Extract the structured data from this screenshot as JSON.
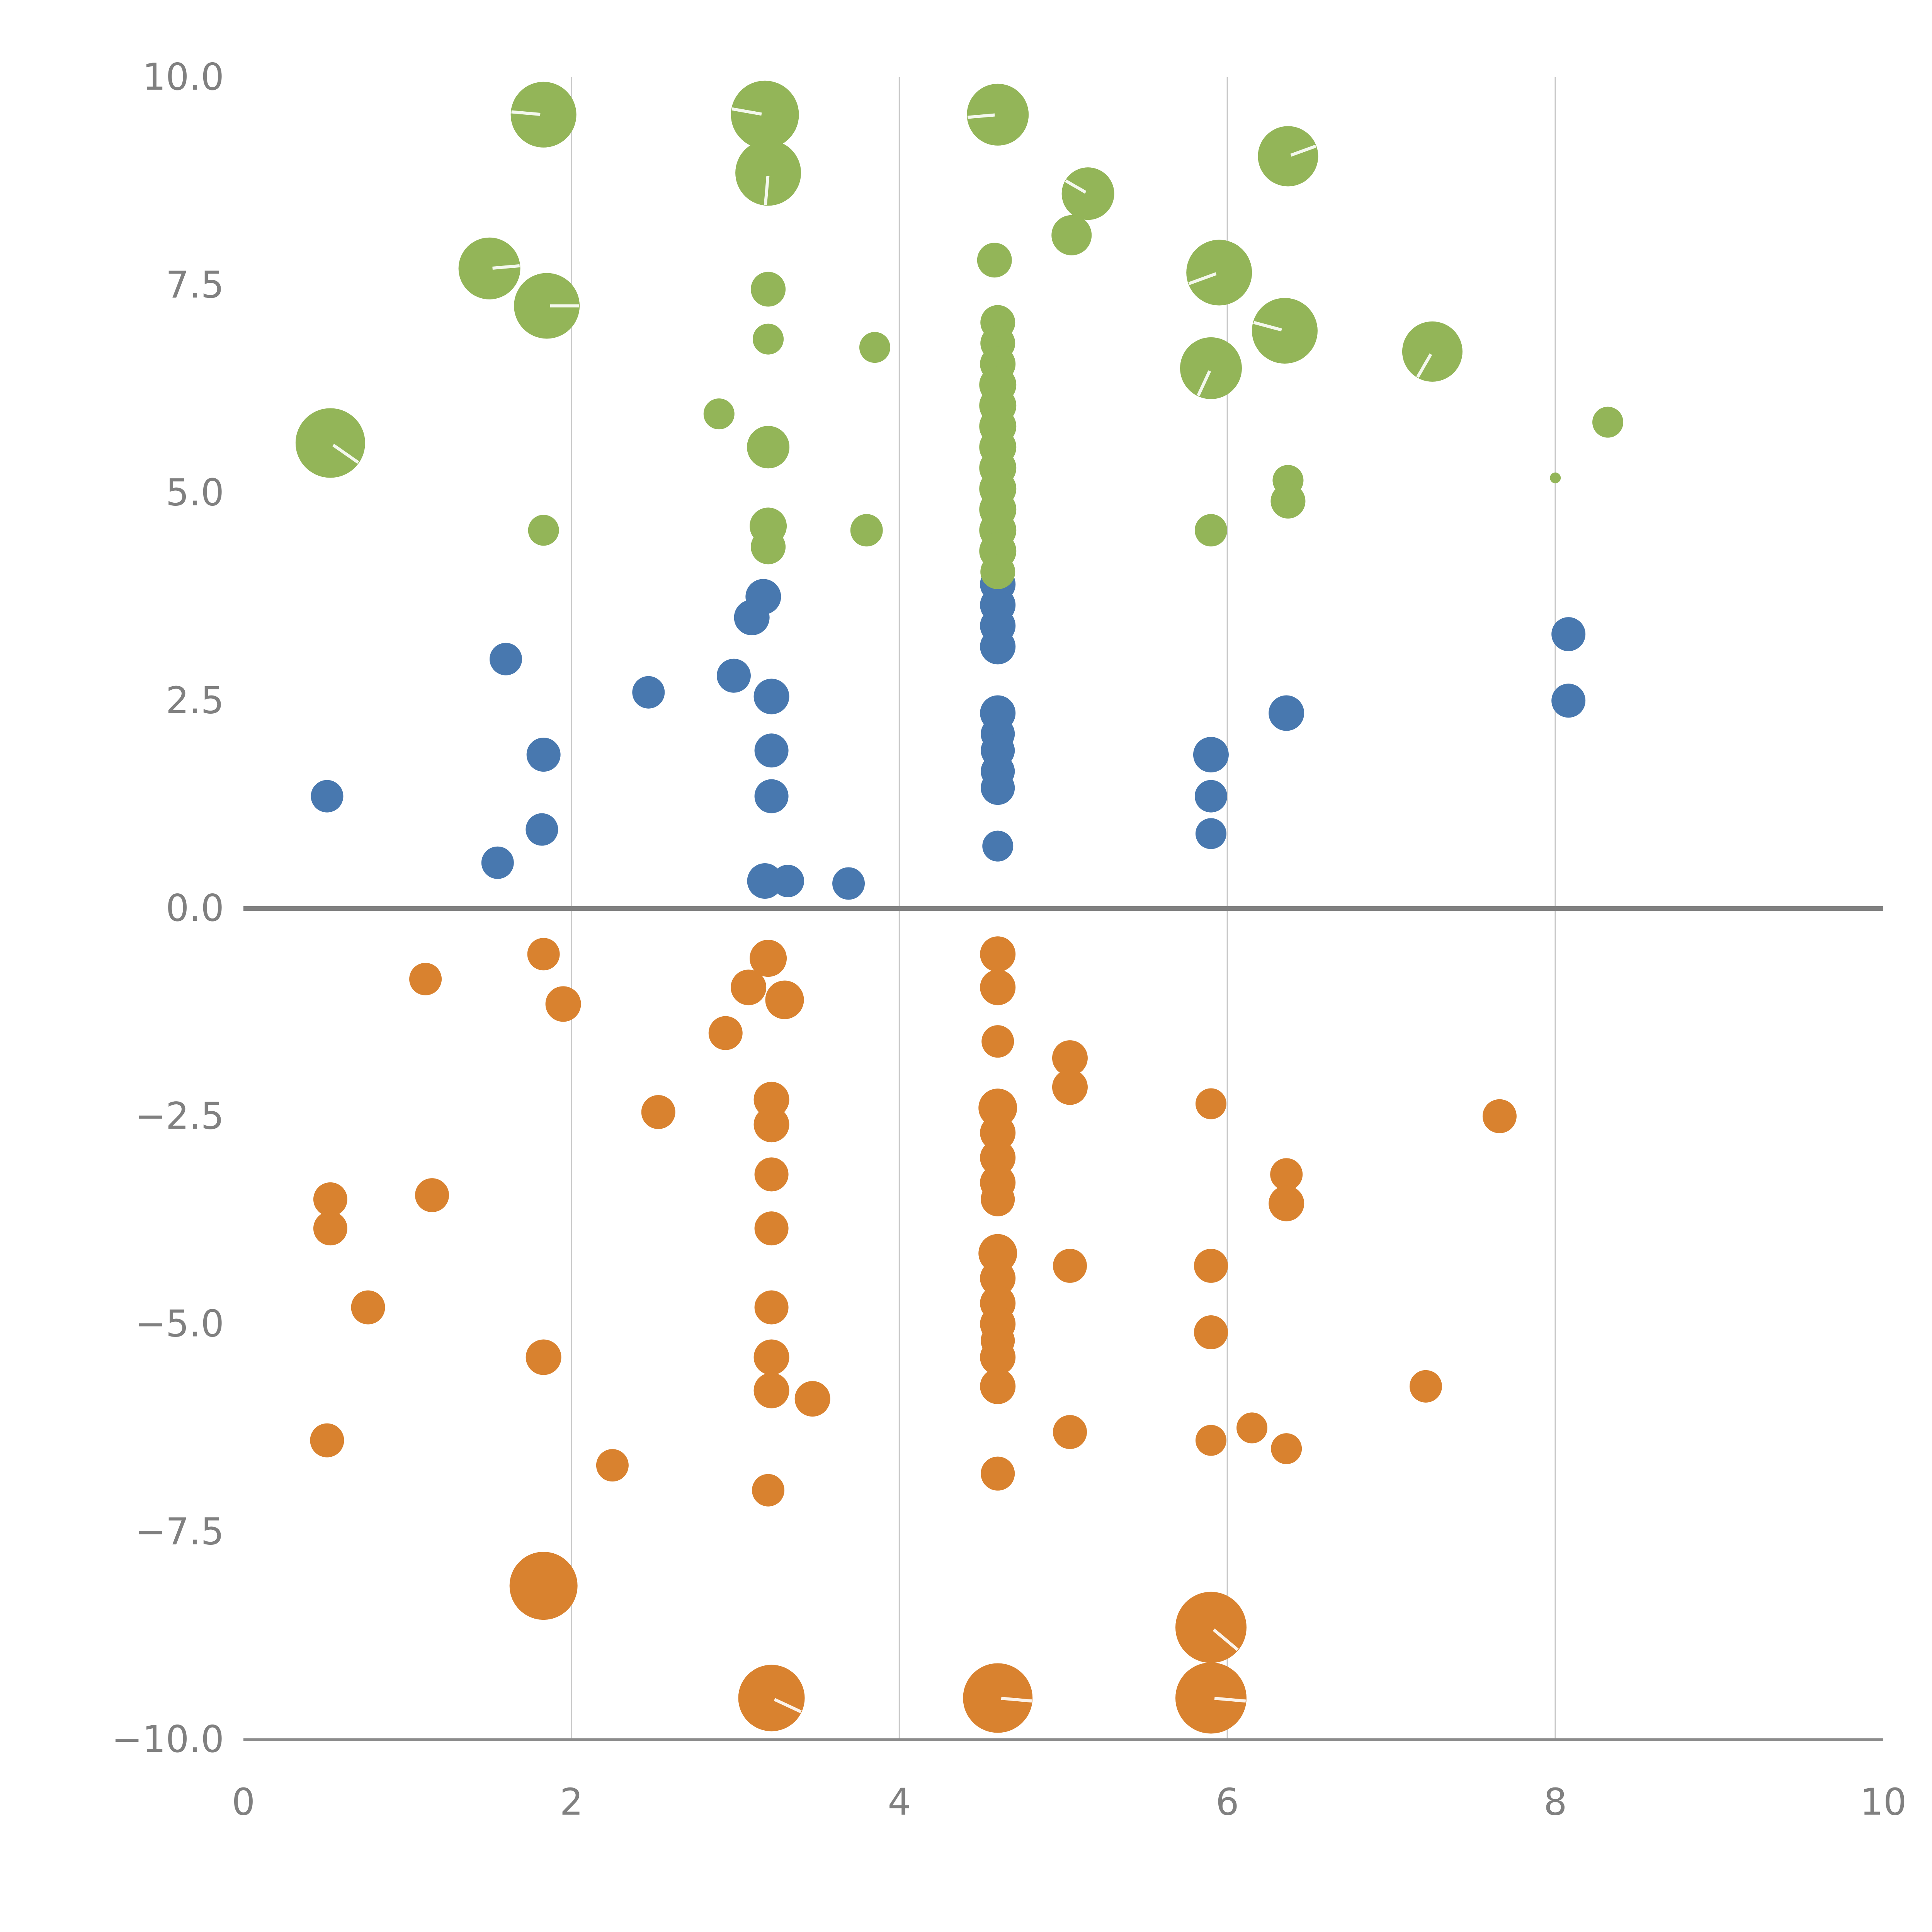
{
  "chart_data": {
    "type": "scatter",
    "title": "",
    "xlabel": "",
    "ylabel": "",
    "xlim": [
      0,
      10
    ],
    "ylim": [
      -10,
      10
    ],
    "grid": "vertical-gridlines-at-x-2-4-6-8, emphasized zero line",
    "legend": "none",
    "colors": {
      "background": "#ffffff",
      "grid": "#c8c8c8",
      "axis": "#8c8c8c",
      "zero_line": "#808080",
      "tick_text": "#808080",
      "bubble_tick": "#ffffff"
    },
    "axes": {
      "x": {
        "min": 0,
        "max": 10,
        "ticks": [
          0,
          2,
          4,
          6,
          8,
          10
        ],
        "tick_labels": [
          "0",
          "2",
          "4",
          "6",
          "8",
          "10"
        ],
        "gridlines": [
          2,
          4,
          6,
          8
        ]
      },
      "y": {
        "min": -10,
        "max": 10,
        "ticks": [
          10,
          7.5,
          5,
          2.5,
          0,
          -2.5,
          -5,
          -7.5,
          -10
        ],
        "tick_labels": [
          "10.0",
          "7.5",
          "5.0",
          "2.5",
          "0.0",
          "−2.5",
          "−5.0",
          "−7.5",
          "−10.0"
        ],
        "zero_line": true
      }
    },
    "series": [
      {
        "name": "blue",
        "color": "#4878af",
        "points": [
          [
            0.51,
            1.35,
            42
          ],
          [
            1.6,
            3.0,
            42
          ],
          [
            1.55,
            0.55,
            42
          ],
          [
            1.83,
            1.85,
            44
          ],
          [
            1.82,
            0.95,
            42
          ],
          [
            2.47,
            2.6,
            42
          ],
          [
            2.99,
            2.8,
            44
          ],
          [
            3.1,
            3.5,
            46
          ],
          [
            3.17,
            3.75,
            46
          ],
          [
            3.22,
            2.55,
            46
          ],
          [
            3.22,
            1.9,
            44
          ],
          [
            3.22,
            1.35,
            44
          ],
          [
            3.18,
            0.33,
            46
          ],
          [
            3.32,
            0.33,
            42
          ],
          [
            3.69,
            0.3,
            42
          ],
          [
            4.6,
            3.9,
            46
          ],
          [
            4.6,
            3.65,
            46
          ],
          [
            4.6,
            3.4,
            46
          ],
          [
            4.6,
            3.15,
            46
          ],
          [
            4.6,
            2.35,
            46
          ],
          [
            4.6,
            2.1,
            44
          ],
          [
            4.6,
            1.9,
            44
          ],
          [
            4.6,
            1.65,
            44
          ],
          [
            4.6,
            1.45,
            44
          ],
          [
            4.6,
            0.75,
            40
          ],
          [
            5.9,
            1.85,
            46
          ],
          [
            5.9,
            1.35,
            42
          ],
          [
            5.9,
            0.9,
            40
          ],
          [
            6.36,
            2.35,
            46
          ],
          [
            8.08,
            3.3,
            44
          ],
          [
            8.08,
            2.5,
            44
          ]
        ]
      },
      {
        "name": "green",
        "color": "#93b558",
        "points": [
          [
            1.83,
            9.55,
            85,
            175
          ],
          [
            3.18,
            9.55,
            88,
            170
          ],
          [
            3.2,
            8.85,
            85,
            265
          ],
          [
            4.6,
            9.55,
            80,
            185
          ],
          [
            5.15,
            8.6,
            68,
            150
          ],
          [
            5.05,
            8.1,
            52
          ],
          [
            6.37,
            9.05,
            78,
            20
          ],
          [
            1.5,
            7.7,
            80,
            5
          ],
          [
            1.85,
            7.25,
            85,
            0
          ],
          [
            5.95,
            7.65,
            85,
            200
          ],
          [
            6.35,
            6.95,
            85,
            165
          ],
          [
            7.25,
            6.7,
            78,
            240
          ],
          [
            5.9,
            6.5,
            80,
            245
          ],
          [
            0.53,
            5.6,
            90,
            325
          ],
          [
            3.2,
            7.45,
            45
          ],
          [
            3.2,
            6.85,
            40
          ],
          [
            3.85,
            6.75,
            40
          ],
          [
            2.9,
            5.95,
            40
          ],
          [
            3.2,
            5.55,
            55
          ],
          [
            8.32,
            5.85,
            40
          ],
          [
            6.37,
            5.15,
            40
          ],
          [
            6.37,
            4.9,
            45
          ],
          [
            8.0,
            5.18,
            14
          ],
          [
            1.83,
            4.55,
            40
          ],
          [
            3.2,
            4.6,
            48
          ],
          [
            3.2,
            4.35,
            45
          ],
          [
            3.8,
            4.55,
            42
          ],
          [
            5.9,
            4.55,
            42
          ],
          [
            4.58,
            7.8,
            45
          ],
          [
            4.6,
            7.05,
            45
          ],
          [
            4.6,
            6.8,
            45
          ],
          [
            4.6,
            6.55,
            46
          ],
          [
            4.6,
            6.3,
            48
          ],
          [
            4.6,
            6.05,
            48
          ],
          [
            4.6,
            5.8,
            48
          ],
          [
            4.6,
            5.55,
            48
          ],
          [
            4.6,
            5.3,
            48
          ],
          [
            4.6,
            5.05,
            48
          ],
          [
            4.6,
            4.8,
            48
          ],
          [
            4.6,
            4.55,
            48
          ],
          [
            4.6,
            4.3,
            48
          ],
          [
            4.6,
            4.05,
            45
          ]
        ]
      },
      {
        "name": "orange",
        "color": "#d9822f",
        "points": [
          [
            1.11,
            -0.85,
            42
          ],
          [
            1.83,
            -0.55,
            42
          ],
          [
            1.95,
            -1.15,
            46
          ],
          [
            3.2,
            -0.6,
            48
          ],
          [
            3.08,
            -0.95,
            46
          ],
          [
            3.3,
            -1.1,
            50
          ],
          [
            2.94,
            -1.5,
            44
          ],
          [
            4.6,
            -0.55,
            46
          ],
          [
            4.6,
            -0.95,
            46
          ],
          [
            4.6,
            -1.6,
            42
          ],
          [
            5.04,
            -1.8,
            46
          ],
          [
            5.04,
            -2.15,
            46
          ],
          [
            2.53,
            -2.45,
            44
          ],
          [
            3.22,
            -2.3,
            46
          ],
          [
            3.22,
            -2.6,
            46
          ],
          [
            3.22,
            -3.2,
            44
          ],
          [
            4.6,
            -2.4,
            50
          ],
          [
            4.6,
            -2.7,
            46
          ],
          [
            4.6,
            -3.0,
            46
          ],
          [
            4.6,
            -3.3,
            46
          ],
          [
            4.6,
            -3.5,
            44
          ],
          [
            5.9,
            -2.35,
            40
          ],
          [
            7.66,
            -2.5,
            44
          ],
          [
            0.53,
            -3.5,
            44
          ],
          [
            0.53,
            -3.85,
            44
          ],
          [
            1.15,
            -3.45,
            44
          ],
          [
            6.36,
            -3.2,
            42
          ],
          [
            6.36,
            -3.55,
            46
          ],
          [
            3.22,
            -3.85,
            44
          ],
          [
            4.6,
            -4.15,
            50
          ],
          [
            4.6,
            -4.45,
            46
          ],
          [
            4.6,
            -4.75,
            46
          ],
          [
            4.6,
            -5.0,
            46
          ],
          [
            4.6,
            -5.2,
            44
          ],
          [
            5.04,
            -4.3,
            44
          ],
          [
            5.9,
            -4.3,
            44
          ],
          [
            0.76,
            -4.8,
            44
          ],
          [
            3.22,
            -4.8,
            44
          ],
          [
            5.9,
            -5.1,
            44
          ],
          [
            1.83,
            -5.4,
            46
          ],
          [
            3.22,
            -5.4,
            46
          ],
          [
            3.22,
            -5.8,
            46
          ],
          [
            3.47,
            -5.9,
            46
          ],
          [
            4.6,
            -5.4,
            46
          ],
          [
            4.6,
            -5.75,
            46
          ],
          [
            7.21,
            -5.75,
            42
          ],
          [
            0.51,
            -6.4,
            44
          ],
          [
            5.04,
            -6.3,
            44
          ],
          [
            5.9,
            -6.4,
            40
          ],
          [
            6.15,
            -6.25,
            40
          ],
          [
            6.36,
            -6.5,
            40
          ],
          [
            2.25,
            -6.7,
            42
          ],
          [
            4.6,
            -6.8,
            44
          ],
          [
            3.2,
            -7.0,
            42
          ],
          [
            1.83,
            -8.15,
            88
          ],
          [
            5.9,
            -8.65,
            92,
            320
          ],
          [
            3.22,
            -9.5,
            86,
            335
          ],
          [
            4.6,
            -9.5,
            90,
            355
          ],
          [
            5.9,
            -9.5,
            92,
            355
          ]
        ]
      }
    ],
    "layout": {
      "plot_left": 630,
      "plot_right": 4874,
      "plot_top": 200,
      "plot_bottom": 4502,
      "tick_font_size": 95
    }
  }
}
